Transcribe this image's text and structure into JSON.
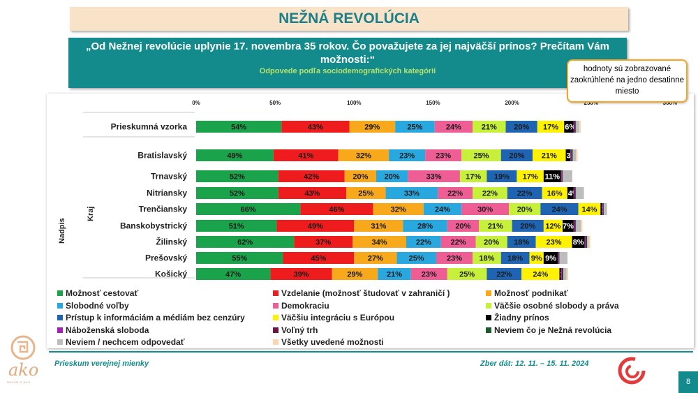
{
  "title": "NEŽNÁ REVOLÚCIA",
  "question": "„Od Nežnej revolúcie uplynie 17. novembra 35 rokov. Čo považujete za jej najväčší prínos? Prečítam Vám možnosti:“",
  "question_sub": "Odpovede podľa sociodemografických kategórií",
  "note": "hodnoty sú zobrazované zaokrúhlené na jedno desatinne miesto",
  "footer": {
    "left": "Prieskum verejnej mienky",
    "right": "Zber dát: 12. 11. – 15. 11. 2024",
    "page": "8",
    "logo_text": "ako",
    "logo_sub": "NEHÁŇ O ÁKO"
  },
  "chart_data": {
    "type": "bar",
    "orientation": "horizontal",
    "stacked": true,
    "x_tick_labels": [
      "0%",
      "50%",
      "100%",
      "150%",
      "200%",
      "250%",
      "300%"
    ],
    "xlim": [
      0,
      300
    ],
    "group_labels": {
      "outer": "Nadpis",
      "inner": "Kraj"
    },
    "categories": [
      "Prieskumná vzorka",
      "Bratislavský",
      "Trnavský",
      "Nitriansky",
      "Trenčiansky",
      "Banskobystrický",
      "Žilinský",
      "Prešovský",
      "Košický"
    ],
    "series": [
      {
        "name": "Možnosť cestovať",
        "color": "#1aa34a",
        "values": [
          54,
          49,
          52,
          52,
          66,
          51,
          62,
          55,
          47
        ]
      },
      {
        "name": "Vzdelanie (možnosť študovať v zahraničí )",
        "color": "#ee1c1c",
        "values": [
          43,
          41,
          42,
          43,
          46,
          49,
          37,
          45,
          39
        ]
      },
      {
        "name": "Možnosť podnikať",
        "color": "#f7a81b",
        "values": [
          29,
          32,
          20,
          25,
          32,
          31,
          34,
          27,
          29
        ]
      },
      {
        "name": "Slobodné voľby",
        "color": "#29a8e0",
        "values": [
          25,
          23,
          20,
          33,
          24,
          28,
          22,
          25,
          21
        ]
      },
      {
        "name": "Demokraciu",
        "color": "#ef5d95",
        "values": [
          24,
          23,
          33,
          22,
          30,
          20,
          22,
          23,
          23
        ]
      },
      {
        "name": "Väčšie osobné slobody a práva",
        "color": "#c7f03b",
        "values": [
          21,
          25,
          17,
          22,
          20,
          21,
          20,
          18,
          25
        ]
      },
      {
        "name": "Prístup k informáciám a médiám bez cenzúry",
        "color": "#1f64b2",
        "values": [
          20,
          20,
          19,
          22,
          24,
          20,
          18,
          18,
          22
        ]
      },
      {
        "name": "Väčšiu integráciu s Európou",
        "color": "#fff200",
        "values": [
          17,
          21,
          17,
          16,
          14,
          12,
          23,
          9,
          24
        ]
      },
      {
        "name": "Žiadny prínos",
        "color": "#000000",
        "values": [
          6,
          3,
          11,
          4,
          1,
          7,
          8,
          9,
          1
        ]
      },
      {
        "name": "Náboženská sloboda",
        "color": "#a51fb8",
        "values": [
          0.5,
          0.5,
          0.5,
          0.5,
          0.5,
          0.5,
          0.5,
          0.5,
          0.5
        ]
      },
      {
        "name": "Voľný trh",
        "color": "#6b1545",
        "values": [
          0.5,
          0.5,
          0.3,
          0.5,
          0.3,
          0.5,
          0.5,
          0.3,
          0.5
        ]
      },
      {
        "name": "Neviem čo je Nežná revolúcia",
        "color": "#1d5c2a",
        "values": [
          0.5,
          0.5,
          0.3,
          0.5,
          0.3,
          0.5,
          0.5,
          0.3,
          0.5
        ]
      },
      {
        "name": "Neviem / nechcem odpovedať",
        "color": "#bdbdbd",
        "values": [
          2,
          2,
          6,
          5,
          2,
          3,
          1,
          5,
          2
        ]
      },
      {
        "name": "Všetky uvedené možnosti",
        "color": "#fbd6b2",
        "values": [
          1,
          1,
          0,
          0,
          0,
          1,
          1,
          0,
          1
        ]
      }
    ],
    "legend_position": "bottom",
    "grid": false
  }
}
